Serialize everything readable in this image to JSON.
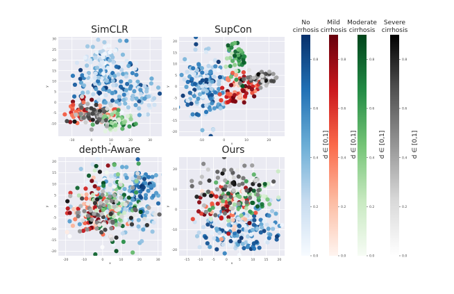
{
  "chart_data": [
    {
      "type": "scatter",
      "title": "SimCLR",
      "xlabel": "x",
      "ylabel": "y",
      "xlim": [
        -17,
        36
      ],
      "ylim": [
        -16,
        31
      ],
      "xticks": [
        -10,
        0,
        10,
        20,
        30
      ],
      "xtick_labels": [
        "-10",
        "0",
        "10",
        "20",
        "30"
      ],
      "yticks": [
        -10,
        -5,
        0,
        5,
        10,
        15,
        20,
        25,
        30
      ],
      "ytick_labels": [
        "-10",
        "-5",
        "0",
        "5",
        "10",
        "15",
        "20",
        "25",
        "30"
      ],
      "grid": true,
      "clusters": [
        {
          "series": "No cirrhosis",
          "cx": 10,
          "cy": 10,
          "sx": 9,
          "sy": 8,
          "count": 150,
          "dmin": 0.0,
          "dmax": 1.0
        },
        {
          "series": "No cirrhosis",
          "cx": 5,
          "cy": 22,
          "sx": 5,
          "sy": 4,
          "count": 45,
          "dmin": 0.0,
          "dmax": 0.4
        },
        {
          "series": "No cirrhosis",
          "cx": 28,
          "cy": 3,
          "sx": 4,
          "sy": 4,
          "count": 30,
          "dmin": 0.1,
          "dmax": 0.6
        },
        {
          "series": "Mild cirrhosis",
          "cx": -5,
          "cy": -4,
          "sx": 3,
          "sy": 2.5,
          "count": 45,
          "dmin": 0.3,
          "dmax": 1.0
        },
        {
          "series": "Mild cirrhosis",
          "cx": 8,
          "cy": -5,
          "sx": 3,
          "sy": 2,
          "count": 25,
          "dmin": 0.1,
          "dmax": 0.6
        },
        {
          "series": "Moderate cirrhosis",
          "cx": 12,
          "cy": -9,
          "sx": 6,
          "sy": 2,
          "count": 55,
          "dmin": 0.1,
          "dmax": 1.0
        },
        {
          "series": "Severe cirrhosis",
          "cx": 0,
          "cy": -6,
          "sx": 5,
          "sy": 2.5,
          "count": 60,
          "dmin": 0.2,
          "dmax": 1.0
        }
      ]
    },
    {
      "type": "scatter",
      "title": "SupCon",
      "xlabel": "x",
      "ylabel": "y",
      "xlim": [
        -20,
        27
      ],
      "ylim": [
        -22,
        22
      ],
      "xticks": [
        -10,
        0,
        10,
        20
      ],
      "xtick_labels": [
        "-10",
        "0",
        "10",
        "20"
      ],
      "yticks": [
        -20,
        -15,
        -10,
        -5,
        0,
        5,
        10,
        15,
        20
      ],
      "ytick_labels": [
        "-20",
        "-15",
        "-10",
        "-5",
        "0",
        "5",
        "10",
        "15",
        "20"
      ],
      "grid": true,
      "clusters": [
        {
          "series": "No cirrhosis",
          "cx": -9,
          "cy": 0,
          "sx": 4.5,
          "sy": 8,
          "count": 170,
          "dmin": 0.0,
          "dmax": 1.0
        },
        {
          "series": "Mild cirrhosis",
          "cx": 8,
          "cy": 0,
          "sx": 4,
          "sy": 3,
          "count": 60,
          "dmin": 0.1,
          "dmax": 1.0
        },
        {
          "series": "Mild cirrhosis",
          "cx": 2,
          "cy": -5,
          "sx": 3,
          "sy": 1.5,
          "count": 20,
          "dmin": 0.5,
          "dmax": 1.0
        },
        {
          "series": "Moderate cirrhosis",
          "cx": 6,
          "cy": 12,
          "sx": 2.5,
          "sy": 4.5,
          "count": 45,
          "dmin": 0.1,
          "dmax": 1.0
        },
        {
          "series": "Severe cirrhosis",
          "cx": 16,
          "cy": 4,
          "sx": 4,
          "sy": 2,
          "count": 45,
          "dmin": 0.2,
          "dmax": 1.0
        }
      ]
    },
    {
      "type": "scatter",
      "title": "depth-Aware",
      "xlabel": "x",
      "ylabel": "y",
      "xlim": [
        -24,
        32
      ],
      "ylim": [
        -22,
        22
      ],
      "xticks": [
        -20,
        -10,
        0,
        10,
        20,
        30
      ],
      "xtick_labels": [
        "-20",
        "-10",
        "0",
        "10",
        "20",
        "30"
      ],
      "yticks": [
        -20,
        -15,
        -10,
        -5,
        0,
        5,
        10,
        15,
        20
      ],
      "ytick_labels": [
        "-20",
        "-15",
        "-10",
        "-5",
        "0",
        "5",
        "10",
        "15",
        "20"
      ],
      "grid": true,
      "clusters": [
        {
          "series": "No cirrhosis",
          "cx": 8,
          "cy": 4,
          "sx": 12,
          "sy": 8,
          "count": 170,
          "dmin": 0.0,
          "dmax": 0.6
        },
        {
          "series": "No cirrhosis",
          "cx": 22,
          "cy": 8,
          "sx": 5,
          "sy": 6,
          "count": 60,
          "dmin": 0.5,
          "dmax": 1.0
        },
        {
          "series": "Mild cirrhosis",
          "cx": -3,
          "cy": -1,
          "sx": 7,
          "sy": 6,
          "count": 80,
          "dmin": 0.0,
          "dmax": 1.0
        },
        {
          "series": "Moderate cirrhosis",
          "cx": 5,
          "cy": 0,
          "sx": 8,
          "sy": 8,
          "count": 80,
          "dmin": 0.0,
          "dmax": 1.0
        },
        {
          "series": "Severe cirrhosis",
          "cx": 2,
          "cy": -3,
          "sx": 10,
          "sy": 7,
          "count": 90,
          "dmin": 0.0,
          "dmax": 1.0
        }
      ]
    },
    {
      "type": "scatter",
      "title": "Ours",
      "xlabel": "x",
      "ylabel": "y",
      "xlim": [
        -18,
        22
      ],
      "ylim": [
        -23,
        26
      ],
      "xticks": [
        -15,
        -10,
        -5,
        0,
        5,
        10,
        15,
        20
      ],
      "xtick_labels": [
        "-15",
        "-10",
        "-5",
        "0",
        "5",
        "10",
        "15",
        "20"
      ],
      "yticks": [
        -20,
        -10,
        0,
        10,
        20
      ],
      "ytick_labels": [
        "-20",
        "-10",
        "0",
        "10",
        "20"
      ],
      "grid": true,
      "clusters": [
        {
          "series": "No cirrhosis",
          "cx": 5,
          "cy": -10,
          "sx": 8,
          "sy": 6,
          "count": 180,
          "dmin": 0.0,
          "dmax": 1.0
        },
        {
          "series": "Mild cirrhosis",
          "cx": 0,
          "cy": 2,
          "sx": 5,
          "sy": 6,
          "count": 70,
          "dmin": 0.0,
          "dmax": 1.0
        },
        {
          "series": "Moderate cirrhosis",
          "cx": 7,
          "cy": 5,
          "sx": 7,
          "sy": 5,
          "count": 60,
          "dmin": 0.0,
          "dmax": 1.0
        },
        {
          "series": "Severe cirrhosis",
          "cx": 2,
          "cy": 12,
          "sx": 8,
          "sy": 6,
          "count": 80,
          "dmin": 0.0,
          "dmax": 1.0
        }
      ]
    }
  ],
  "colorbars": [
    {
      "name": "No cirrhosis",
      "title_lines": [
        "No",
        "cirrhosis"
      ],
      "colors": [
        "#f7fbff",
        "#c6dbef",
        "#6baed6",
        "#2171b5",
        "#08306b"
      ],
      "label": "d ∈ [0,1]",
      "ticks": [
        0.0,
        0.2,
        0.4,
        0.6,
        0.8
      ],
      "tick_labels": [
        "0.0",
        "0.2",
        "0.4",
        "0.6",
        "0.8"
      ]
    },
    {
      "name": "Mild cirrhosis",
      "title_lines": [
        "Mild",
        "cirrhosis"
      ],
      "colors": [
        "#fff5f0",
        "#fcbba1",
        "#fb6a4a",
        "#cb181d",
        "#67000d"
      ],
      "label": "d ∈ [0,1]",
      "ticks": [
        0.0,
        0.2,
        0.4,
        0.6,
        0.8
      ],
      "tick_labels": [
        "0.0",
        "0.2",
        "0.4",
        "0.6",
        "0.8"
      ]
    },
    {
      "name": "Moderate cirrhosis",
      "title_lines": [
        "Moderate",
        "cirrhosis"
      ],
      "colors": [
        "#f7fcf5",
        "#c7e9c0",
        "#74c476",
        "#238b45",
        "#00441b"
      ],
      "label": "d ∈ [0,1]",
      "ticks": [
        0.0,
        0.2,
        0.4,
        0.6,
        0.8
      ],
      "tick_labels": [
        "0.0",
        "0.2",
        "0.4",
        "0.6",
        "0.8"
      ]
    },
    {
      "name": "Severe cirrhosis",
      "title_lines": [
        "Severe",
        "cirrhosis"
      ],
      "colors": [
        "#ffffff",
        "#d9d9d9",
        "#969696",
        "#525252",
        "#000000"
      ],
      "label": "d ∈ [0,1]",
      "ticks": [
        0.0,
        0.2,
        0.4,
        0.6,
        0.8
      ],
      "tick_labels": [
        "0.0",
        "0.2",
        "0.4",
        "0.6",
        "0.8"
      ]
    }
  ],
  "style": {
    "panel_bg": "#eaeaf2",
    "grid_color": "#ffffff",
    "tick_color": "#444444"
  }
}
